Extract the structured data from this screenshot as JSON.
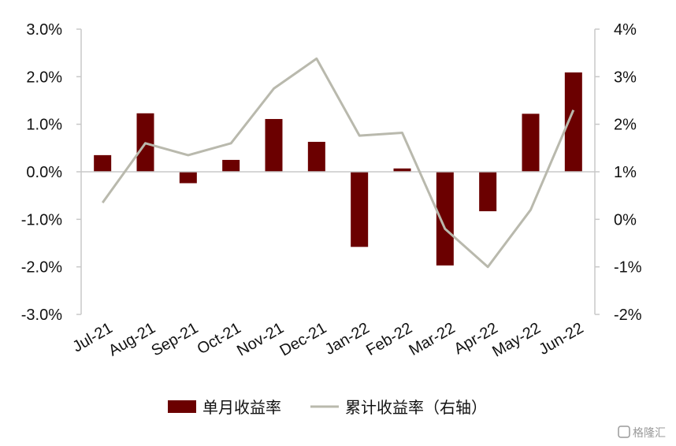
{
  "chart_data": {
    "type": "bar",
    "categories": [
      "Jul-21",
      "Aug-21",
      "Sep-21",
      "Oct-21",
      "Nov-21",
      "Dec-21",
      "Jan-22",
      "Feb-22",
      "Mar-22",
      "Apr-22",
      "May-22",
      "Jun-22"
    ],
    "series": [
      {
        "name": "单月收益率",
        "type": "bar",
        "axis": "left",
        "color": "#6b0000",
        "values": [
          0.35,
          1.23,
          -0.24,
          0.25,
          1.11,
          0.63,
          -1.58,
          0.07,
          -1.97,
          -0.83,
          1.22,
          2.09
        ]
      },
      {
        "name": "累计收益率（右轴）",
        "type": "line",
        "axis": "right",
        "color": "#b9b9ad",
        "values": [
          0.35,
          1.6,
          1.35,
          1.6,
          2.75,
          3.38,
          1.76,
          1.82,
          -0.2,
          -1.0,
          0.2,
          2.3
        ]
      }
    ],
    "yaxis_left": {
      "ylim": [
        -3.0,
        3.0
      ],
      "ticks": [
        3.0,
        2.0,
        1.0,
        0.0,
        -1.0,
        -2.0,
        -3.0
      ],
      "tick_labels": [
        "3.0%",
        "2.0%",
        "1.0%",
        "0.0%",
        "-1.0%",
        "-2.0%",
        "-3.0%"
      ]
    },
    "yaxis_right": {
      "ylim": [
        -2,
        4
      ],
      "ticks": [
        4,
        3,
        2,
        1,
        0,
        -1,
        -2
      ],
      "tick_labels": [
        "4%",
        "3%",
        "2%",
        "1%",
        "0%",
        "-1%",
        "-2%"
      ]
    },
    "grid": false,
    "legend_position": "bottom"
  },
  "watermark": {
    "text": "格隆汇",
    "icon": "glh-logo-icon"
  }
}
